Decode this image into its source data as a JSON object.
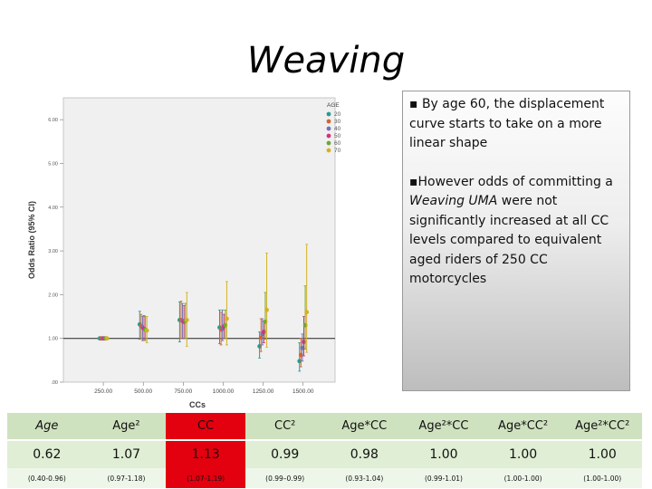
{
  "title": "Weaving",
  "chart_data": {
    "type": "scatter",
    "xlabel": "CCs",
    "ylabel": "Odds Ratio (95% CI)",
    "xlim": [
      0,
      1700
    ],
    "ylim": [
      0,
      6.5
    ],
    "x_ticks": [
      "250.00",
      "500.00",
      "750.00",
      "1000.00",
      "1250.00",
      "1500.00"
    ],
    "y_ticks": [
      "6.00",
      "5.00",
      "4.00",
      "3.00",
      "2.00",
      "1.00",
      ".00"
    ],
    "reference_line": 1.0,
    "legend_title": "AGE",
    "legend_position": "top-right",
    "series": [
      {
        "name": "20",
        "color": "#2a9a8f",
        "points": [
          {
            "x": 250,
            "y": 1.0,
            "lo": 1.0,
            "hi": 1.0
          },
          {
            "x": 500,
            "y": 1.32,
            "lo": 0.98,
            "hi": 1.62
          },
          {
            "x": 750,
            "y": 1.42,
            "lo": 0.92,
            "hi": 1.83
          },
          {
            "x": 1000,
            "y": 1.25,
            "lo": 0.88,
            "hi": 1.65
          },
          {
            "x": 1250,
            "y": 0.82,
            "lo": 0.55,
            "hi": 1.15
          },
          {
            "x": 1500,
            "y": 0.48,
            "lo": 0.25,
            "hi": 0.9
          }
        ]
      },
      {
        "name": "30",
        "color": "#d9622b",
        "points": [
          {
            "x": 250,
            "y": 1.0,
            "lo": 1.0,
            "hi": 1.0
          },
          {
            "x": 500,
            "y": 1.28,
            "lo": 1.0,
            "hi": 1.55
          },
          {
            "x": 750,
            "y": 1.42,
            "lo": 1.0,
            "hi": 1.85
          },
          {
            "x": 1000,
            "y": 1.2,
            "lo": 0.85,
            "hi": 1.6
          },
          {
            "x": 1250,
            "y": 1.02,
            "lo": 0.7,
            "hi": 1.45
          },
          {
            "x": 1500,
            "y": 0.62,
            "lo": 0.35,
            "hi": 1.0
          }
        ]
      },
      {
        "name": "40",
        "color": "#7a6fb0",
        "points": [
          {
            "x": 250,
            "y": 1.0,
            "lo": 1.0,
            "hi": 1.0
          },
          {
            "x": 500,
            "y": 1.25,
            "lo": 0.95,
            "hi": 1.5
          },
          {
            "x": 750,
            "y": 1.4,
            "lo": 1.0,
            "hi": 1.8
          },
          {
            "x": 1000,
            "y": 1.22,
            "lo": 0.95,
            "hi": 1.65
          },
          {
            "x": 1250,
            "y": 1.1,
            "lo": 0.85,
            "hi": 1.45
          },
          {
            "x": 1500,
            "y": 0.78,
            "lo": 0.48,
            "hi": 1.1
          }
        ]
      },
      {
        "name": "50",
        "color": "#d6307a",
        "points": [
          {
            "x": 250,
            "y": 1.0,
            "lo": 1.0,
            "hi": 1.0
          },
          {
            "x": 500,
            "y": 1.22,
            "lo": 0.95,
            "hi": 1.52
          },
          {
            "x": 750,
            "y": 1.38,
            "lo": 1.0,
            "hi": 1.75
          },
          {
            "x": 1000,
            "y": 1.28,
            "lo": 1.0,
            "hi": 1.55
          },
          {
            "x": 1250,
            "y": 1.15,
            "lo": 0.9,
            "hi": 1.4
          },
          {
            "x": 1500,
            "y": 0.92,
            "lo": 0.6,
            "hi": 1.5
          }
        ]
      },
      {
        "name": "60",
        "color": "#6aa83a",
        "points": [
          {
            "x": 250,
            "y": 1.0,
            "lo": 1.0,
            "hi": 1.0
          },
          {
            "x": 500,
            "y": 1.2,
            "lo": 0.95,
            "hi": 1.5
          },
          {
            "x": 750,
            "y": 1.4,
            "lo": 1.0,
            "hi": 1.8
          },
          {
            "x": 1000,
            "y": 1.3,
            "lo": 1.0,
            "hi": 1.65
          },
          {
            "x": 1250,
            "y": 1.38,
            "lo": 0.98,
            "hi": 2.05
          },
          {
            "x": 1500,
            "y": 1.3,
            "lo": 0.75,
            "hi": 2.2
          }
        ]
      },
      {
        "name": "70",
        "color": "#d4b21f",
        "points": [
          {
            "x": 250,
            "y": 1.0,
            "lo": 1.0,
            "hi": 1.0
          },
          {
            "x": 500,
            "y": 1.18,
            "lo": 0.9,
            "hi": 1.5
          },
          {
            "x": 750,
            "y": 1.42,
            "lo": 0.82,
            "hi": 2.05
          },
          {
            "x": 1000,
            "y": 1.45,
            "lo": 0.85,
            "hi": 2.3
          },
          {
            "x": 1250,
            "y": 1.65,
            "lo": 0.8,
            "hi": 2.95
          },
          {
            "x": 1500,
            "y": 1.6,
            "lo": 0.68,
            "hi": 3.15
          }
        ]
      }
    ]
  },
  "callout": {
    "bullet1": "By age 60, the displacement curve starts to take on a more linear shape",
    "bullet2_pre": "However odds of committing a ",
    "bullet2_em": "Weaving UMA",
    "bullet2_post": " were not significantly increased at all CC levels compared to equivalent aged riders of 250 CC motorcycles"
  },
  "table": {
    "headers": [
      "Age",
      "Age²",
      "CC",
      "CC²",
      "Age*CC",
      "Age²*CC",
      "Age*CC²",
      "Age²*CC²"
    ],
    "values": [
      "0.62",
      "1.07",
      "1.13",
      "0.99",
      "0.98",
      "1.00",
      "1.00",
      "1.00"
    ],
    "cis": [
      "(0.40-0.96)",
      "(0.97-1.18)",
      "(1.07-1.19)",
      "(0.99–0.99)",
      "(0.93-1.04)",
      "(0.99-1.01)",
      "(1.00-1.00)",
      "(1.00-1.00)"
    ],
    "highlight_index": 2,
    "highlight_color": "#e3000f"
  }
}
